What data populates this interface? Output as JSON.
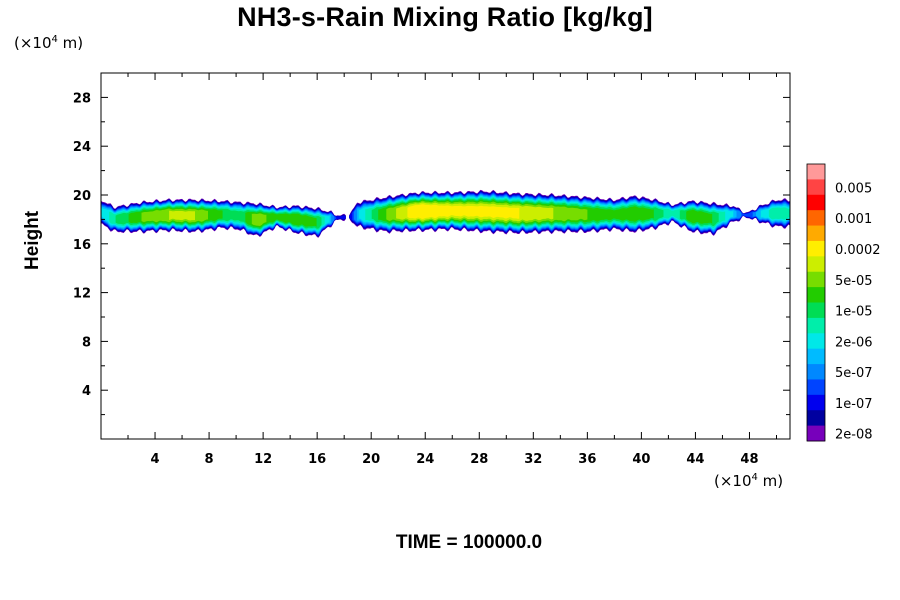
{
  "chart_data": {
    "type": "heatmap",
    "title": "NH3-s-Rain Mixing Ratio [kg/kg]",
    "ylabel": "Height",
    "xlabel": "",
    "x_unit": "(×10⁴ m)",
    "y_unit": "(×10⁴ m)",
    "xlim": [
      0,
      51
    ],
    "ylim": [
      0,
      30
    ],
    "x_ticks": [
      4,
      8,
      12,
      16,
      20,
      24,
      28,
      32,
      36,
      40,
      44,
      48
    ],
    "y_ticks": [
      4,
      8,
      12,
      16,
      20,
      24,
      28
    ],
    "footer": "TIME = 100000.0",
    "colorbar": {
      "labels": [
        "0.005",
        "0.001",
        "0.0002",
        "5e-05",
        "1e-05",
        "2e-06",
        "5e-07",
        "1e-07",
        "2e-08"
      ],
      "colors": [
        "#ff9999",
        "#ff4444",
        "#ff0000",
        "#ff6600",
        "#ffaa00",
        "#ffee00",
        "#ccee00",
        "#77dd00",
        "#22cc00",
        "#00dd55",
        "#00eeaa",
        "#00e8e8",
        "#00bbff",
        "#0088ff",
        "#0044ff",
        "#0000ee",
        "#0000a0",
        "#7700bb"
      ]
    },
    "layer": {
      "profile": [
        {
          "x": 0.0,
          "bottom": 17.6,
          "top": 19.6,
          "level": 6
        },
        {
          "x": 1.0,
          "bottom": 17.0,
          "top": 19.0,
          "level": 8
        },
        {
          "x": 3.0,
          "bottom": 17.0,
          "top": 19.4,
          "level": 10
        },
        {
          "x": 5.0,
          "bottom": 17.1,
          "top": 19.6,
          "level": 11
        },
        {
          "x": 7.0,
          "bottom": 17.0,
          "top": 19.6,
          "level": 11
        },
        {
          "x": 9.0,
          "bottom": 17.3,
          "top": 19.5,
          "level": 9
        },
        {
          "x": 10.2,
          "bottom": 17.2,
          "top": 19.4,
          "level": 8
        },
        {
          "x": 11.5,
          "bottom": 16.6,
          "top": 19.3,
          "level": 11
        },
        {
          "x": 13.0,
          "bottom": 17.4,
          "top": 19.0,
          "level": 9
        },
        {
          "x": 14.5,
          "bottom": 16.9,
          "top": 19.1,
          "level": 10
        },
        {
          "x": 16.0,
          "bottom": 16.6,
          "top": 18.9,
          "level": 9
        },
        {
          "x": 17.0,
          "bottom": 17.5,
          "top": 18.6,
          "level": 6
        },
        {
          "x": 17.6,
          "bottom": 18.0,
          "top": 18.3,
          "level": 2
        },
        {
          "x": 18.4,
          "bottom": 18.0,
          "top": 18.4,
          "level": 2
        },
        {
          "x": 19.0,
          "bottom": 17.4,
          "top": 19.4,
          "level": 6
        },
        {
          "x": 21.0,
          "bottom": 17.0,
          "top": 19.8,
          "level": 10
        },
        {
          "x": 23.5,
          "bottom": 17.1,
          "top": 20.2,
          "level": 13
        },
        {
          "x": 26.0,
          "bottom": 17.2,
          "top": 20.2,
          "level": 12
        },
        {
          "x": 28.5,
          "bottom": 17.0,
          "top": 20.3,
          "level": 12
        },
        {
          "x": 31.0,
          "bottom": 16.9,
          "top": 20.1,
          "level": 12
        },
        {
          "x": 33.5,
          "bottom": 17.0,
          "top": 20.0,
          "level": 11
        },
        {
          "x": 36.0,
          "bottom": 17.0,
          "top": 19.8,
          "level": 10
        },
        {
          "x": 38.0,
          "bottom": 17.2,
          "top": 19.6,
          "level": 9
        },
        {
          "x": 39.5,
          "bottom": 17.0,
          "top": 19.9,
          "level": 10
        },
        {
          "x": 41.0,
          "bottom": 17.3,
          "top": 19.6,
          "level": 9
        },
        {
          "x": 42.3,
          "bottom": 17.8,
          "top": 19.2,
          "level": 7
        },
        {
          "x": 43.8,
          "bottom": 17.0,
          "top": 19.5,
          "level": 10
        },
        {
          "x": 45.3,
          "bottom": 16.8,
          "top": 19.3,
          "level": 9
        },
        {
          "x": 46.8,
          "bottom": 17.8,
          "top": 19.1,
          "level": 6
        },
        {
          "x": 47.8,
          "bottom": 18.2,
          "top": 18.5,
          "level": 3
        },
        {
          "x": 48.8,
          "bottom": 17.8,
          "top": 19.1,
          "level": 6
        },
        {
          "x": 50.0,
          "bottom": 17.4,
          "top": 19.6,
          "level": 8
        },
        {
          "x": 51.0,
          "bottom": 17.4,
          "top": 19.6,
          "level": 7
        }
      ]
    }
  }
}
